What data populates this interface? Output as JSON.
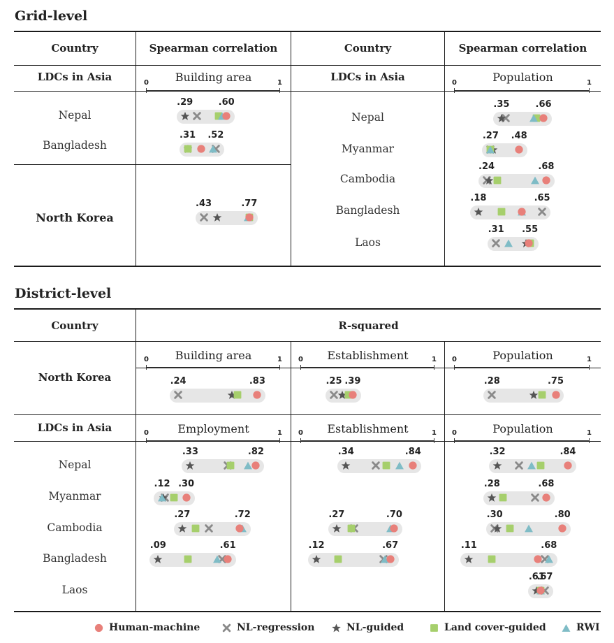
{
  "sections": {
    "grid_title": "Grid-level",
    "district_title": "District-level"
  },
  "grid": {
    "col_country": "Country",
    "col_spearman": "Spearman correlation",
    "ldc_label": "LDCs in Asia",
    "left_metric": "Building area",
    "right_metric": "Population",
    "left_rows": [
      {
        "country": "Nepal",
        "lo": ".29",
        "hi": ".60",
        "markers": {
          "nl_regression": 0.38,
          "nl_guided": 0.29,
          "land_cover": 0.54,
          "rwi": 0.57,
          "human_machine": 0.6
        }
      },
      {
        "country": "Bangladesh",
        "lo": ".31",
        "hi": ".52",
        "markers": {
          "nl_regression": 0.52,
          "nl_guided": 0.31,
          "land_cover": 0.31,
          "rwi": 0.5,
          "human_machine": 0.41
        }
      }
    ],
    "nk_row": {
      "country": "North Korea",
      "lo": ".43",
      "hi": ".77",
      "markers": {
        "nl_regression": 0.43,
        "nl_guided": 0.53,
        "land_cover": 0.77,
        "rwi": 0.76,
        "human_machine": 0.77
      }
    },
    "right_rows": [
      {
        "country": "Nepal",
        "lo": ".35",
        "hi": ".66",
        "markers": {
          "nl_regression": 0.38,
          "nl_guided": 0.35,
          "land_cover": 0.61,
          "rwi": 0.59,
          "human_machine": 0.66
        }
      },
      {
        "country": "Myanmar",
        "lo": ".27",
        "hi": ".48",
        "markers": {
          "nl_regression": 0.27,
          "nl_guided": 0.29,
          "land_cover": 0.27,
          "rwi": 0.27,
          "human_machine": 0.48
        }
      },
      {
        "country": "Cambodia",
        "lo": ".24",
        "hi": ".68",
        "markers": {
          "nl_regression": 0.24,
          "nl_guided": 0.26,
          "land_cover": 0.32,
          "rwi": 0.6,
          "human_machine": 0.68
        }
      },
      {
        "country": "Bangladesh",
        "lo": ".18",
        "hi": ".65",
        "markers": {
          "nl_regression": 0.65,
          "nl_guided": 0.18,
          "land_cover": 0.35,
          "rwi": 0.5,
          "human_machine": 0.5
        }
      },
      {
        "country": "Laos",
        "lo": ".31",
        "hi": ".55",
        "markers": {
          "nl_regression": 0.31,
          "nl_guided": 0.53,
          "land_cover": 0.56,
          "rwi": 0.4,
          "human_machine": 0.55
        }
      }
    ]
  },
  "district": {
    "col_country": "Country",
    "col_rsq": "R-squared",
    "nk_label": "North Korea",
    "ldc_label": "LDCs in Asia",
    "nk_metrics": [
      "Building area",
      "Establishment",
      "Population"
    ],
    "ldc_metrics": [
      "Employment",
      "Establishment",
      "Population"
    ],
    "nk_values": [
      {
        "lo": ".24",
        "hi": ".83",
        "markers": {
          "nl_regression": 0.24,
          "nl_guided": 0.64,
          "land_cover": 0.68,
          "human_machine": 0.83
        }
      },
      {
        "lo": ".25",
        "hi": ".39",
        "markers": {
          "nl_regression": 0.25,
          "nl_guided": 0.31,
          "land_cover": 0.36,
          "human_machine": 0.39
        }
      },
      {
        "lo": ".28",
        "hi": ".75",
        "markers": {
          "nl_regression": 0.28,
          "nl_guided": 0.59,
          "land_cover": 0.65,
          "human_machine": 0.75
        }
      }
    ],
    "countries": [
      "Nepal",
      "Myanmar",
      "Cambodia",
      "Bangladesh",
      "Laos"
    ],
    "ldc_values": [
      [
        {
          "lo": ".33",
          "hi": ".82",
          "markers": {
            "nl_regression": 0.61,
            "nl_guided": 0.33,
            "land_cover": 0.63,
            "rwi": 0.76,
            "human_machine": 0.82
          }
        },
        {
          "lo": ".12",
          "hi": ".30",
          "markers": {
            "nl_regression": 0.14,
            "nl_guided": 0.13,
            "land_cover": 0.21,
            "rwi": 0.12,
            "human_machine": 0.3
          }
        },
        {
          "lo": ".27",
          "hi": ".72",
          "markers": {
            "nl_regression": 0.47,
            "nl_guided": 0.27,
            "land_cover": 0.37,
            "rwi": 0.72,
            "human_machine": 0.7
          }
        },
        {
          "lo": ".09",
          "hi": ".61",
          "markers": {
            "nl_regression": 0.57,
            "nl_guided": 0.09,
            "land_cover": 0.31,
            "rwi": 0.53,
            "human_machine": 0.61
          }
        },
        null
      ],
      [
        {
          "lo": ".34",
          "hi": ".84",
          "markers": {
            "nl_regression": 0.56,
            "nl_guided": 0.34,
            "land_cover": 0.64,
            "rwi": 0.74,
            "human_machine": 0.84
          }
        },
        null,
        {
          "lo": ".27",
          "hi": ".70",
          "markers": {
            "nl_regression": 0.4,
            "nl_guided": 0.27,
            "land_cover": 0.38,
            "rwi": 0.67,
            "human_machine": 0.7
          }
        },
        {
          "lo": ".12",
          "hi": ".67",
          "markers": {
            "nl_regression": 0.62,
            "nl_guided": 0.12,
            "land_cover": 0.28,
            "rwi": 0.63,
            "human_machine": 0.67
          }
        },
        null
      ],
      [
        {
          "lo": ".32",
          "hi": ".84",
          "markers": {
            "nl_regression": 0.48,
            "nl_guided": 0.32,
            "land_cover": 0.64,
            "rwi": 0.57,
            "human_machine": 0.84
          }
        },
        {
          "lo": ".28",
          "hi": ".68",
          "markers": {
            "nl_regression": 0.6,
            "nl_guided": 0.28,
            "land_cover": 0.36,
            "human_machine": 0.68
          }
        },
        {
          "lo": ".30",
          "hi": ".80",
          "markers": {
            "nl_regression": 0.3,
            "nl_guided": 0.32,
            "land_cover": 0.41,
            "rwi": 0.55,
            "human_machine": 0.8
          }
        },
        {
          "lo": ".11",
          "hi": ".68",
          "markers": {
            "nl_regression": 0.67,
            "nl_guided": 0.11,
            "land_cover": 0.28,
            "rwi": 0.7,
            "human_machine": 0.62
          }
        },
        {
          "lo": ".61",
          "hi": ".67",
          "markers": {
            "nl_regression": 0.67,
            "nl_guided": 0.61,
            "land_cover": 0.64,
            "rwi": 0.64,
            "human_machine": 0.64
          }
        }
      ]
    ]
  },
  "legend": [
    {
      "key": "human_machine",
      "label": "Human-machine"
    },
    {
      "key": "nl_regression",
      "label": "NL-regression"
    },
    {
      "key": "nl_guided",
      "label": "NL-guided"
    },
    {
      "key": "land_cover",
      "label": "Land cover-guided"
    },
    {
      "key": "rwi",
      "label": "RWI"
    }
  ],
  "colors": {
    "human_machine": "#e8807a",
    "nl_regression": "#8a8a8a",
    "nl_guided": "#555555",
    "land_cover": "#a6cf6c",
    "rwi": "#7fbcc6",
    "pill": "#e6e6e6"
  },
  "scale_ticks": [
    "0",
    "1"
  ]
}
